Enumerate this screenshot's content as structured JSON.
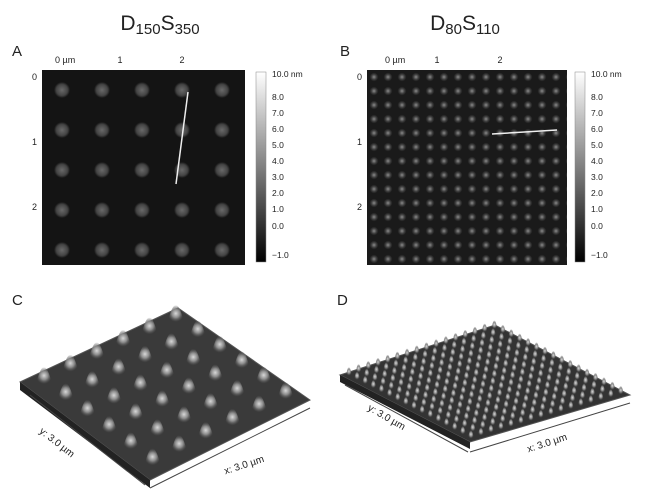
{
  "panels": [
    {
      "title": [
        "D",
        "150",
        "S",
        "350"
      ],
      "map_label": "A",
      "x_ticks": [
        "0 µm",
        "1",
        "2"
      ],
      "y_ticks": [
        "0",
        "1",
        "2"
      ],
      "colorbar": [
        "10.0 nm",
        "8.0",
        "7.0",
        "6.0",
        "5.0",
        "4.0",
        "3.0",
        "2.0",
        "1.0",
        "0.0",
        "−1.0"
      ],
      "surface_label": "C",
      "y_axis": "y: 3.0 µm",
      "x_axis": "x: 3.0 µm"
    },
    {
      "title": [
        "D",
        "80",
        "S",
        "110"
      ],
      "map_label": "B",
      "x_ticks": [
        "0 µm",
        "1",
        "2"
      ],
      "y_ticks": [
        "0",
        "1",
        "2"
      ],
      "colorbar": [
        "10.0 nm",
        "8.0",
        "7.0",
        "6.0",
        "5.0",
        "4.0",
        "3.0",
        "2.0",
        "1.0",
        "0.0",
        "−1.0"
      ],
      "surface_label": "D",
      "y_axis": "y: 3.0 µm",
      "x_axis": "x: 3.0 µm"
    }
  ]
}
